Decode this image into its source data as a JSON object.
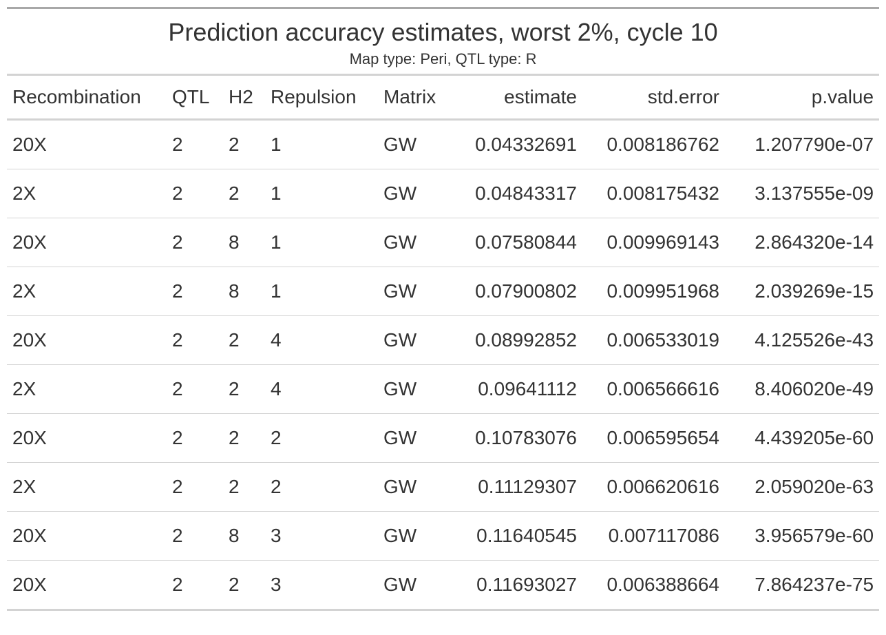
{
  "table": {
    "title": "Prediction accuracy estimates, worst 2%, cycle 10",
    "subtitle": "Map type: Peri, QTL type: R",
    "columns": [
      "Recombination",
      "QTL",
      "H2",
      "Repulsion",
      "Matrix",
      "estimate",
      "std.error",
      "p.value"
    ],
    "rows": [
      [
        "20X",
        "2",
        "2",
        "1",
        "GW",
        "0.04332691",
        "0.008186762",
        "1.207790e-07"
      ],
      [
        "2X",
        "2",
        "2",
        "1",
        "GW",
        "0.04843317",
        "0.008175432",
        "3.137555e-09"
      ],
      [
        "20X",
        "2",
        "8",
        "1",
        "GW",
        "0.07580844",
        "0.009969143",
        "2.864320e-14"
      ],
      [
        "2X",
        "2",
        "8",
        "1",
        "GW",
        "0.07900802",
        "0.009951968",
        "2.039269e-15"
      ],
      [
        "20X",
        "2",
        "2",
        "4",
        "GW",
        "0.08992852",
        "0.006533019",
        "4.125526e-43"
      ],
      [
        "2X",
        "2",
        "2",
        "4",
        "GW",
        "0.09641112",
        "0.006566616",
        "8.406020e-49"
      ],
      [
        "20X",
        "2",
        "2",
        "2",
        "GW",
        "0.10783076",
        "0.006595654",
        "4.439205e-60"
      ],
      [
        "2X",
        "2",
        "2",
        "2",
        "GW",
        "0.11129307",
        "0.006620616",
        "2.059020e-63"
      ],
      [
        "20X",
        "2",
        "8",
        "3",
        "GW",
        "0.11640545",
        "0.007117086",
        "3.956579e-60"
      ],
      [
        "20X",
        "2",
        "2",
        "3",
        "GW",
        "0.11693027",
        "0.006388664",
        "7.864237e-75"
      ]
    ]
  }
}
